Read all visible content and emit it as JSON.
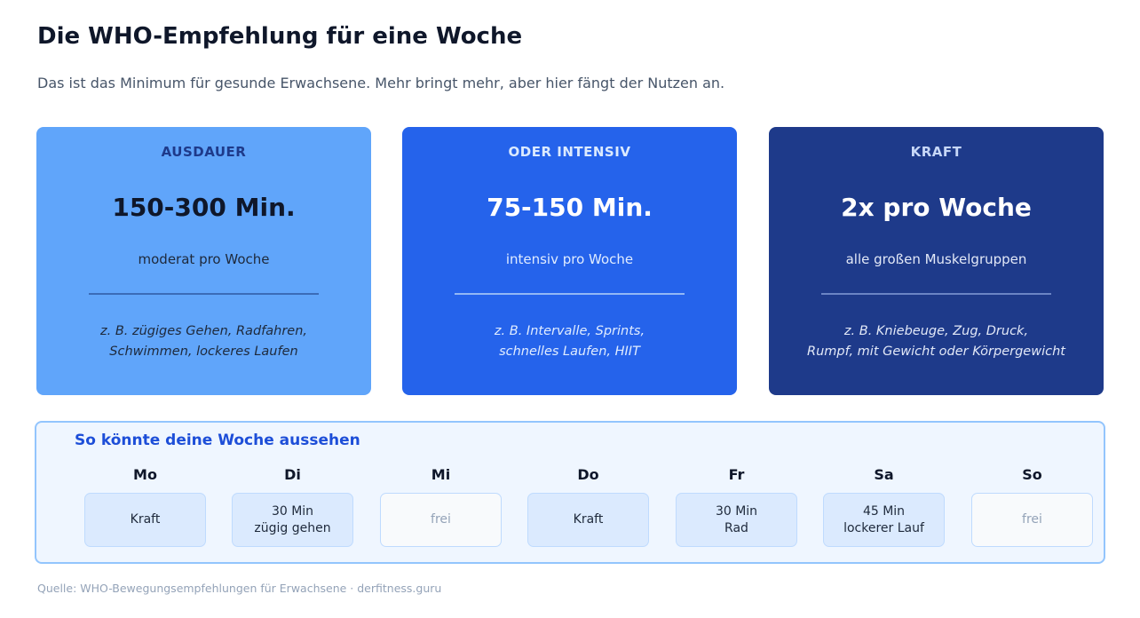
{
  "title": "Die WHO-Empfehlung für eine Woche",
  "subtitle": "Das ist das Minimum für gesunde Erwachsene. Mehr bringt mehr, aber hier fängt der Nutzen an.",
  "cards": [
    {
      "label": "AUSDAUER",
      "value": "150-300 Min.",
      "desc": "moderat pro Woche",
      "example_1": "z. B. zügiges Gehen, Radfahren,",
      "example_2": "Schwimmen, lockeres Laufen",
      "color": "#60a5fa"
    },
    {
      "label": "ODER INTENSIV",
      "value": "75-150 Min.",
      "desc": "intensiv pro Woche",
      "example_1": "z. B. Intervalle, Sprints,",
      "example_2": "schnelles Laufen, HIIT",
      "color": "#2563eb"
    },
    {
      "label": "KRAFT",
      "value": "2x pro Woche",
      "desc": "alle großen Muskelgruppen",
      "example_1": "z. B. Kniebeuge, Zug, Druck,",
      "example_2": "Rumpf, mit Gewicht oder Körpergewicht",
      "color": "#1e3a8a"
    }
  ],
  "week": {
    "title": "So könnte deine Woche aussehen",
    "days": [
      {
        "name": "Mo",
        "activity": "Kraft",
        "free": false
      },
      {
        "name": "Di",
        "activity": "30 Min\nzügig gehen",
        "free": false
      },
      {
        "name": "Mi",
        "activity": "frei",
        "free": true
      },
      {
        "name": "Do",
        "activity": "Kraft",
        "free": false
      },
      {
        "name": "Fr",
        "activity": "30 Min\nRad",
        "free": false
      },
      {
        "name": "Sa",
        "activity": "45 Min\nlockerer Lauf",
        "free": false
      },
      {
        "name": "So",
        "activity": "frei",
        "free": true
      }
    ]
  },
  "source": "Quelle: WHO-Bewegungsempfehlungen für Erwachsene · derfitness.guru"
}
